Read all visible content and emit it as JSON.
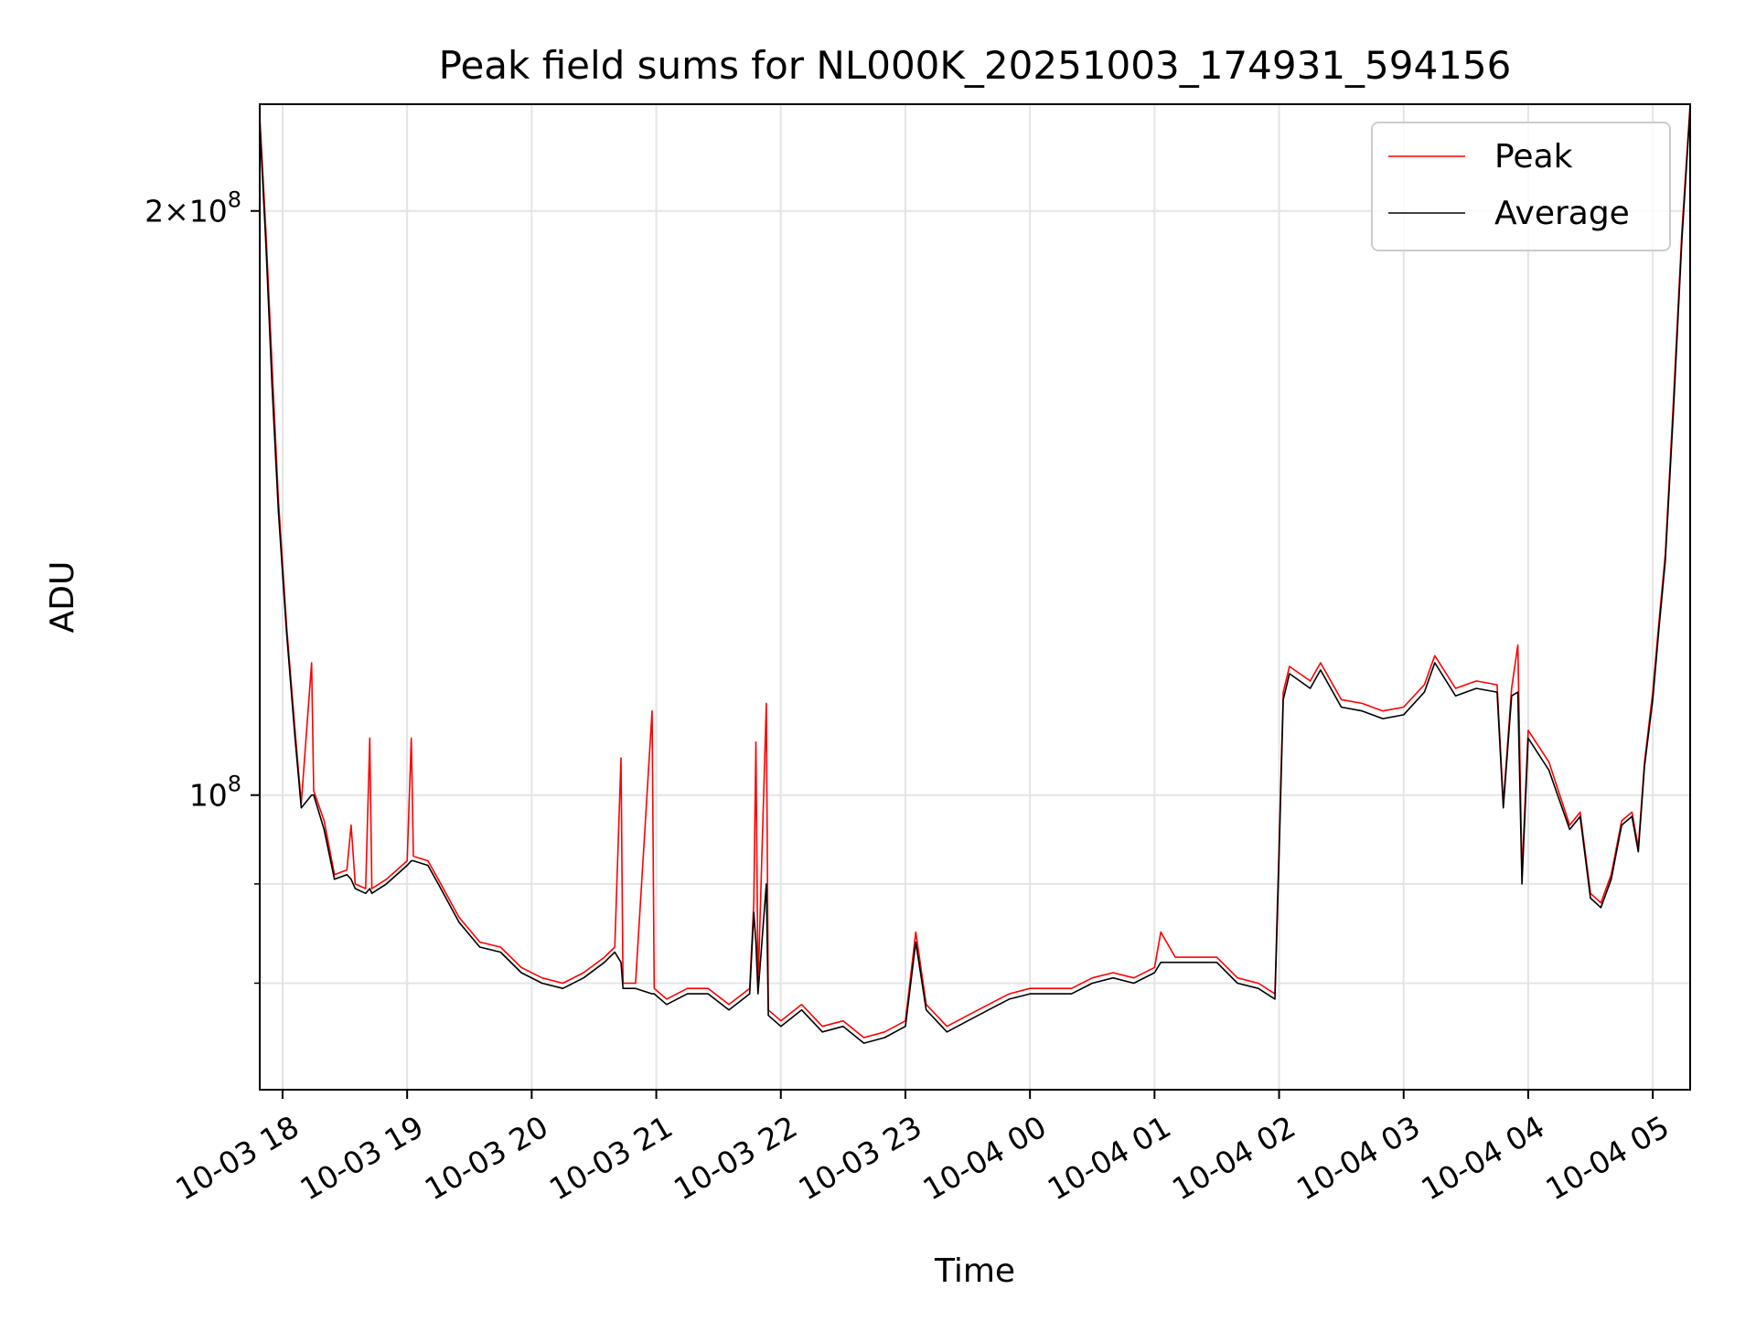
{
  "chart_data": {
    "type": "line",
    "title": "Peak field sums for NL000K_20251003_174931_594156",
    "xlabel": "Time",
    "ylabel": "ADU",
    "yscale": "log",
    "grid": true,
    "legend_position": "top-right",
    "xlim": [
      "2025-10-03 17:49",
      "2025-10-04 05:18"
    ],
    "ylim": [
      70500000,
      227000000
    ],
    "x_ticks": [
      {
        "value": "2025-10-03 18:00",
        "label": "10-03 18"
      },
      {
        "value": "2025-10-03 19:00",
        "label": "10-03 19"
      },
      {
        "value": "2025-10-03 20:00",
        "label": "10-03 20"
      },
      {
        "value": "2025-10-03 21:00",
        "label": "10-03 21"
      },
      {
        "value": "2025-10-03 22:00",
        "label": "10-03 22"
      },
      {
        "value": "2025-10-03 23:00",
        "label": "10-03 23"
      },
      {
        "value": "2025-10-04 00:00",
        "label": "10-04 00"
      },
      {
        "value": "2025-10-04 01:00",
        "label": "10-04 01"
      },
      {
        "value": "2025-10-04 02:00",
        "label": "10-04 02"
      },
      {
        "value": "2025-10-04 03:00",
        "label": "10-04 03"
      },
      {
        "value": "2025-10-04 04:00",
        "label": "10-04 04"
      },
      {
        "value": "2025-10-04 05:00",
        "label": "10-04 05"
      }
    ],
    "y_major_ticks": [
      {
        "value": 100000000,
        "base": "10",
        "exponent": "8",
        "mantissa": ""
      },
      {
        "value": 200000000,
        "base": "10",
        "exponent": "8",
        "mantissa": "2"
      }
    ],
    "y_minor_ticks": [
      80000000,
      90000000
    ],
    "series": [
      {
        "name": "Peak",
        "color": "#ff0000",
        "points": [
          [
            "2025-10-03 17:49",
            224000000
          ],
          [
            "2025-10-03 17:52",
            195000000
          ],
          [
            "2025-10-03 17:55",
            166000000
          ],
          [
            "2025-10-03 17:58",
            142000000
          ],
          [
            "2025-10-03 18:02",
            122000000
          ],
          [
            "2025-10-03 18:06",
            108000000
          ],
          [
            "2025-10-03 18:09",
            99000000
          ],
          [
            "2025-10-03 18:14",
            117000000
          ],
          [
            "2025-10-03 18:15",
            100500000
          ],
          [
            "2025-10-03 18:20",
            97000000
          ],
          [
            "2025-10-03 18:25",
            91000000
          ],
          [
            "2025-10-03 18:31",
            91500000
          ],
          [
            "2025-10-03 18:33",
            96500000
          ],
          [
            "2025-10-03 18:35",
            90000000
          ],
          [
            "2025-10-03 18:40",
            89500000
          ],
          [
            "2025-10-03 18:42",
            107000000
          ],
          [
            "2025-10-03 18:43",
            89500000
          ],
          [
            "2025-10-03 18:50",
            90500000
          ],
          [
            "2025-10-03 19:00",
            92500000
          ],
          [
            "2025-10-03 19:02",
            107000000
          ],
          [
            "2025-10-03 19:03",
            93000000
          ],
          [
            "2025-10-03 19:10",
            92500000
          ],
          [
            "2025-10-03 19:15",
            90500000
          ],
          [
            "2025-10-03 19:25",
            86500000
          ],
          [
            "2025-10-03 19:35",
            84000000
          ],
          [
            "2025-10-03 19:45",
            83500000
          ],
          [
            "2025-10-03 19:55",
            81500000
          ],
          [
            "2025-10-03 20:05",
            80500000
          ],
          [
            "2025-10-03 20:15",
            80000000
          ],
          [
            "2025-10-03 20:25",
            81000000
          ],
          [
            "2025-10-03 20:35",
            82500000
          ],
          [
            "2025-10-03 20:40",
            83500000
          ],
          [
            "2025-10-03 20:43",
            104500000
          ],
          [
            "2025-10-03 20:44",
            80000000
          ],
          [
            "2025-10-03 20:50",
            80000000
          ],
          [
            "2025-10-03 20:58",
            110500000
          ],
          [
            "2025-10-03 20:59",
            79500000
          ],
          [
            "2025-10-03 21:05",
            78500000
          ],
          [
            "2025-10-03 21:15",
            79500000
          ],
          [
            "2025-10-03 21:25",
            79500000
          ],
          [
            "2025-10-03 21:35",
            78000000
          ],
          [
            "2025-10-03 21:45",
            79500000
          ],
          [
            "2025-10-03 21:47",
            88000000
          ],
          [
            "2025-10-03 21:48",
            106500000
          ],
          [
            "2025-10-03 21:49",
            79500000
          ],
          [
            "2025-10-03 21:53",
            111500000
          ],
          [
            "2025-10-03 21:54",
            77500000
          ],
          [
            "2025-10-03 22:00",
            76500000
          ],
          [
            "2025-10-03 22:10",
            78000000
          ],
          [
            "2025-10-03 22:20",
            76000000
          ],
          [
            "2025-10-03 22:30",
            76500000
          ],
          [
            "2025-10-03 22:40",
            75000000
          ],
          [
            "2025-10-03 22:50",
            75500000
          ],
          [
            "2025-10-03 23:00",
            76500000
          ],
          [
            "2025-10-03 23:05",
            85000000
          ],
          [
            "2025-10-03 23:10",
            78000000
          ],
          [
            "2025-10-03 23:20",
            76000000
          ],
          [
            "2025-10-03 23:30",
            77000000
          ],
          [
            "2025-10-03 23:40",
            78000000
          ],
          [
            "2025-10-03 23:50",
            79000000
          ],
          [
            "2025-10-04 00:00",
            79500000
          ],
          [
            "2025-10-04 00:10",
            79500000
          ],
          [
            "2025-10-04 00:20",
            79500000
          ],
          [
            "2025-10-04 00:30",
            80500000
          ],
          [
            "2025-10-04 00:40",
            81000000
          ],
          [
            "2025-10-04 00:50",
            80500000
          ],
          [
            "2025-10-04 01:00",
            81500000
          ],
          [
            "2025-10-04 01:03",
            85000000
          ],
          [
            "2025-10-04 01:10",
            82500000
          ],
          [
            "2025-10-04 01:20",
            82500000
          ],
          [
            "2025-10-04 01:30",
            82500000
          ],
          [
            "2025-10-04 01:40",
            80500000
          ],
          [
            "2025-10-04 01:50",
            80000000
          ],
          [
            "2025-10-04 01:58",
            79000000
          ],
          [
            "2025-10-04 02:00",
            94000000
          ],
          [
            "2025-10-04 02:02",
            113000000
          ],
          [
            "2025-10-04 02:05",
            116500000
          ],
          [
            "2025-10-04 02:15",
            114500000
          ],
          [
            "2025-10-04 02:20",
            117000000
          ],
          [
            "2025-10-04 02:30",
            112000000
          ],
          [
            "2025-10-04 02:40",
            111500000
          ],
          [
            "2025-10-04 02:50",
            110500000
          ],
          [
            "2025-10-04 03:00",
            111000000
          ],
          [
            "2025-10-04 03:10",
            114000000
          ],
          [
            "2025-10-04 03:15",
            118000000
          ],
          [
            "2025-10-04 03:25",
            113500000
          ],
          [
            "2025-10-04 03:35",
            114500000
          ],
          [
            "2025-10-04 03:45",
            114000000
          ],
          [
            "2025-10-04 03:48",
            99000000
          ],
          [
            "2025-10-04 03:52",
            113500000
          ],
          [
            "2025-10-04 03:55",
            119500000
          ],
          [
            "2025-10-04 03:57",
            91000000
          ],
          [
            "2025-10-04 04:00",
            108000000
          ],
          [
            "2025-10-04 04:10",
            104000000
          ],
          [
            "2025-10-04 04:20",
            96500000
          ],
          [
            "2025-10-04 04:25",
            98000000
          ],
          [
            "2025-10-04 04:30",
            89000000
          ],
          [
            "2025-10-04 04:35",
            88000000
          ],
          [
            "2025-10-04 04:40",
            91000000
          ],
          [
            "2025-10-04 04:45",
            97000000
          ],
          [
            "2025-10-04 04:50",
            98000000
          ],
          [
            "2025-10-04 04:53",
            94000000
          ],
          [
            "2025-10-04 04:56",
            104000000
          ],
          [
            "2025-10-04 05:00",
            113000000
          ],
          [
            "2025-10-04 05:03",
            123000000
          ],
          [
            "2025-10-04 05:06",
            133000000
          ],
          [
            "2025-10-04 05:10",
            160000000
          ],
          [
            "2025-10-04 05:14",
            195000000
          ],
          [
            "2025-10-04 05:18",
            227000000
          ]
        ]
      },
      {
        "name": "Average",
        "color": "#000000",
        "points": [
          [
            "2025-10-03 17:49",
            222000000
          ],
          [
            "2025-10-03 17:52",
            192000000
          ],
          [
            "2025-10-03 17:55",
            162000000
          ],
          [
            "2025-10-03 17:58",
            140000000
          ],
          [
            "2025-10-03 18:02",
            121000000
          ],
          [
            "2025-10-03 18:06",
            107000000
          ],
          [
            "2025-10-03 18:09",
            98500000
          ],
          [
            "2025-10-03 18:14",
            100000000
          ],
          [
            "2025-10-03 18:15",
            100000000
          ],
          [
            "2025-10-03 18:20",
            96000000
          ],
          [
            "2025-10-03 18:25",
            90500000
          ],
          [
            "2025-10-03 18:31",
            91000000
          ],
          [
            "2025-10-03 18:33",
            90500000
          ],
          [
            "2025-10-03 18:35",
            89500000
          ],
          [
            "2025-10-03 18:40",
            89000000
          ],
          [
            "2025-10-03 18:42",
            89500000
          ],
          [
            "2025-10-03 18:43",
            89000000
          ],
          [
            "2025-10-03 18:50",
            90000000
          ],
          [
            "2025-10-03 19:00",
            92000000
          ],
          [
            "2025-10-03 19:02",
            92500000
          ],
          [
            "2025-10-03 19:03",
            92500000
          ],
          [
            "2025-10-03 19:10",
            92000000
          ],
          [
            "2025-10-03 19:15",
            90000000
          ],
          [
            "2025-10-03 19:25",
            86000000
          ],
          [
            "2025-10-03 19:35",
            83500000
          ],
          [
            "2025-10-03 19:45",
            83000000
          ],
          [
            "2025-10-03 19:55",
            81000000
          ],
          [
            "2025-10-03 20:05",
            80000000
          ],
          [
            "2025-10-03 20:15",
            79500000
          ],
          [
            "2025-10-03 20:25",
            80500000
          ],
          [
            "2025-10-03 20:35",
            82000000
          ],
          [
            "2025-10-03 20:40",
            83000000
          ],
          [
            "2025-10-03 20:43",
            82000000
          ],
          [
            "2025-10-03 20:44",
            79500000
          ],
          [
            "2025-10-03 20:50",
            79500000
          ],
          [
            "2025-10-03 20:58",
            79000000
          ],
          [
            "2025-10-03 20:59",
            79000000
          ],
          [
            "2025-10-03 21:05",
            78000000
          ],
          [
            "2025-10-03 21:15",
            79000000
          ],
          [
            "2025-10-03 21:25",
            79000000
          ],
          [
            "2025-10-03 21:35",
            77500000
          ],
          [
            "2025-10-03 21:45",
            79000000
          ],
          [
            "2025-10-03 21:47",
            87000000
          ],
          [
            "2025-10-03 21:48",
            84000000
          ],
          [
            "2025-10-03 21:49",
            79000000
          ],
          [
            "2025-10-03 21:53",
            90000000
          ],
          [
            "2025-10-03 21:54",
            77000000
          ],
          [
            "2025-10-03 22:00",
            76000000
          ],
          [
            "2025-10-03 22:10",
            77500000
          ],
          [
            "2025-10-03 22:20",
            75500000
          ],
          [
            "2025-10-03 22:30",
            76000000
          ],
          [
            "2025-10-03 22:40",
            74500000
          ],
          [
            "2025-10-03 22:50",
            75000000
          ],
          [
            "2025-10-03 23:00",
            76000000
          ],
          [
            "2025-10-03 23:05",
            84000000
          ],
          [
            "2025-10-03 23:10",
            77500000
          ],
          [
            "2025-10-03 23:20",
            75500000
          ],
          [
            "2025-10-03 23:30",
            76500000
          ],
          [
            "2025-10-03 23:40",
            77500000
          ],
          [
            "2025-10-03 23:50",
            78500000
          ],
          [
            "2025-10-04 00:00",
            79000000
          ],
          [
            "2025-10-04 00:10",
            79000000
          ],
          [
            "2025-10-04 00:20",
            79000000
          ],
          [
            "2025-10-04 00:30",
            80000000
          ],
          [
            "2025-10-04 00:40",
            80500000
          ],
          [
            "2025-10-04 00:50",
            80000000
          ],
          [
            "2025-10-04 01:00",
            81000000
          ],
          [
            "2025-10-04 01:03",
            82000000
          ],
          [
            "2025-10-04 01:10",
            82000000
          ],
          [
            "2025-10-04 01:20",
            82000000
          ],
          [
            "2025-10-04 01:30",
            82000000
          ],
          [
            "2025-10-04 01:40",
            80000000
          ],
          [
            "2025-10-04 01:50",
            79500000
          ],
          [
            "2025-10-04 01:58",
            78500000
          ],
          [
            "2025-10-04 02:00",
            93000000
          ],
          [
            "2025-10-04 02:02",
            112000000
          ],
          [
            "2025-10-04 02:05",
            115500000
          ],
          [
            "2025-10-04 02:15",
            113500000
          ],
          [
            "2025-10-04 02:20",
            116000000
          ],
          [
            "2025-10-04 02:30",
            111000000
          ],
          [
            "2025-10-04 02:40",
            110500000
          ],
          [
            "2025-10-04 02:50",
            109500000
          ],
          [
            "2025-10-04 03:00",
            110000000
          ],
          [
            "2025-10-04 03:10",
            113000000
          ],
          [
            "2025-10-04 03:15",
            117000000
          ],
          [
            "2025-10-04 03:25",
            112500000
          ],
          [
            "2025-10-04 03:35",
            113500000
          ],
          [
            "2025-10-04 03:45",
            113000000
          ],
          [
            "2025-10-04 03:48",
            98500000
          ],
          [
            "2025-10-04 03:52",
            112500000
          ],
          [
            "2025-10-04 03:55",
            113000000
          ],
          [
            "2025-10-04 03:57",
            90000000
          ],
          [
            "2025-10-04 04:00",
            107000000
          ],
          [
            "2025-10-04 04:10",
            103000000
          ],
          [
            "2025-10-04 04:20",
            96000000
          ],
          [
            "2025-10-04 04:25",
            97500000
          ],
          [
            "2025-10-04 04:30",
            88500000
          ],
          [
            "2025-10-04 04:35",
            87500000
          ],
          [
            "2025-10-04 04:40",
            90500000
          ],
          [
            "2025-10-04 04:45",
            96500000
          ],
          [
            "2025-10-04 04:50",
            97500000
          ],
          [
            "2025-10-04 04:53",
            93500000
          ],
          [
            "2025-10-04 04:56",
            103500000
          ],
          [
            "2025-10-04 05:00",
            112000000
          ],
          [
            "2025-10-04 05:03",
            122000000
          ],
          [
            "2025-10-04 05:06",
            132000000
          ],
          [
            "2025-10-04 05:10",
            158000000
          ],
          [
            "2025-10-04 05:14",
            193000000
          ],
          [
            "2025-10-04 05:18",
            226000000
          ]
        ]
      }
    ]
  }
}
